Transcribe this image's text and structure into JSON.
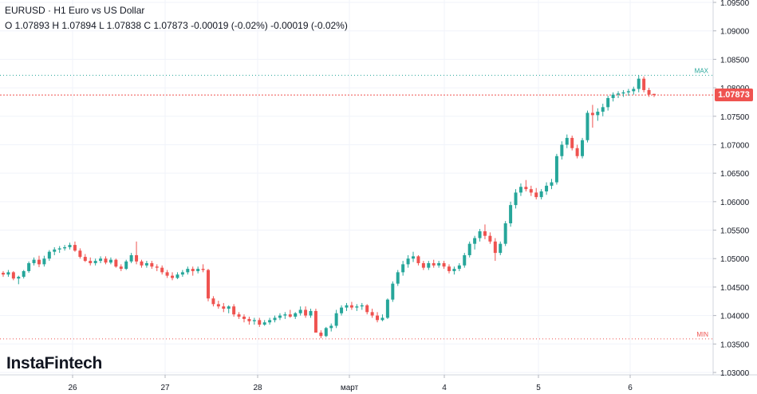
{
  "header": {
    "title": "EURUSD · H1 Euro vs US Dollar",
    "ohlc": "O 1.07893 H 1.07894 L 1.07838 C 1.07873 -0.00019 (-0.02%) -0.00019 (-0.02%)"
  },
  "logo": "InstaFintech",
  "colors": {
    "up": "#26a69a",
    "down": "#ef5350",
    "grid": "#f0f3fa",
    "axis_text": "#131722",
    "max_line": "#26a69a",
    "min_line": "#ef5350",
    "current_line": "#ef5350",
    "price_tag": "#ef5350"
  },
  "chart_data": {
    "type": "candlestick",
    "symbol": "EURUSD",
    "timeframe": "H1",
    "ylim": [
      1.03,
      1.095
    ],
    "y_ticks": [
      "1.09500",
      "1.09000",
      "1.08500",
      "1.08000",
      "1.07500",
      "1.07000",
      "1.06500",
      "1.06000",
      "1.05500",
      "1.05000",
      "1.04500",
      "1.04000",
      "1.03500",
      "1.03000"
    ],
    "x_labels": [
      "26",
      "27",
      "28",
      "март",
      "4",
      "5",
      "6"
    ],
    "current_price": "1.07873",
    "max": {
      "label": "MAX",
      "value": 1.0822
    },
    "min": {
      "label": "MIN",
      "value": 1.0359
    },
    "ohlc": [
      [
        1.0475,
        1.0478,
        1.0468,
        1.0472
      ],
      [
        1.0472,
        1.048,
        1.0468,
        1.0476
      ],
      [
        1.0476,
        1.0478,
        1.0462,
        1.0465
      ],
      [
        1.0465,
        1.047,
        1.0455,
        1.0468
      ],
      [
        1.0468,
        1.048,
        1.0465,
        1.0478
      ],
      [
        1.0478,
        1.0495,
        1.0475,
        1.0492
      ],
      [
        1.0492,
        1.0502,
        1.0488,
        1.0498
      ],
      [
        1.0498,
        1.0505,
        1.0485,
        1.049
      ],
      [
        1.049,
        1.0505,
        1.0486,
        1.05
      ],
      [
        1.05,
        1.0515,
        1.0496,
        1.0512
      ],
      [
        1.0512,
        1.052,
        1.0506,
        1.0516
      ],
      [
        1.0516,
        1.0522,
        1.051,
        1.0518
      ],
      [
        1.0518,
        1.0524,
        1.0514,
        1.052
      ],
      [
        1.052,
        1.0528,
        1.0516,
        1.0524
      ],
      [
        1.0524,
        1.053,
        1.0512,
        1.0514
      ],
      [
        1.0514,
        1.0518,
        1.05,
        1.0503
      ],
      [
        1.0503,
        1.0508,
        1.0494,
        1.0496
      ],
      [
        1.0496,
        1.0502,
        1.0488,
        1.0492
      ],
      [
        1.0492,
        1.05,
        1.0488,
        1.0496
      ],
      [
        1.0496,
        1.0504,
        1.0492,
        1.05
      ],
      [
        1.05,
        1.0504,
        1.049,
        1.0493
      ],
      [
        1.0493,
        1.0502,
        1.049,
        1.0498
      ],
      [
        1.0498,
        1.05,
        1.0484,
        1.0486
      ],
      [
        1.0486,
        1.049,
        1.0478,
        1.0482
      ],
      [
        1.0482,
        1.0498,
        1.048,
        1.0495
      ],
      [
        1.0495,
        1.051,
        1.0492,
        1.0506
      ],
      [
        1.0506,
        1.053,
        1.049,
        1.0495
      ],
      [
        1.0495,
        1.0498,
        1.0484,
        1.0488
      ],
      [
        1.0488,
        1.0496,
        1.0484,
        1.0492
      ],
      [
        1.0492,
        1.0496,
        1.0482,
        1.0486
      ],
      [
        1.0486,
        1.049,
        1.0478,
        1.0484
      ],
      [
        1.0484,
        1.0488,
        1.0472,
        1.0476
      ],
      [
        1.0476,
        1.048,
        1.0466,
        1.047
      ],
      [
        1.047,
        1.0476,
        1.0462,
        1.0466
      ],
      [
        1.0466,
        1.0476,
        1.0464,
        1.0472
      ],
      [
        1.0472,
        1.048,
        1.0468,
        1.0476
      ],
      [
        1.0476,
        1.0486,
        1.0472,
        1.0482
      ],
      [
        1.0482,
        1.0486,
        1.047,
        1.0478
      ],
      [
        1.0478,
        1.0486,
        1.0474,
        1.0482
      ],
      [
        1.0482,
        1.049,
        1.0476,
        1.048
      ],
      [
        1.048,
        1.0482,
        1.0425,
        1.043
      ],
      [
        1.043,
        1.0434,
        1.0416,
        1.042
      ],
      [
        1.042,
        1.0426,
        1.0412,
        1.0416
      ],
      [
        1.0416,
        1.0422,
        1.0406,
        1.0412
      ],
      [
        1.0412,
        1.0418,
        1.0404,
        1.0416
      ],
      [
        1.0416,
        1.042,
        1.0398,
        1.0402
      ],
      [
        1.0402,
        1.0406,
        1.0394,
        1.0398
      ],
      [
        1.0398,
        1.0402,
        1.0388,
        1.0394
      ],
      [
        1.0394,
        1.0398,
        1.0384,
        1.039
      ],
      [
        1.039,
        1.0396,
        1.0384,
        1.0392
      ],
      [
        1.0392,
        1.0396,
        1.038,
        1.0384
      ],
      [
        1.0384,
        1.0392,
        1.0382,
        1.0388
      ],
      [
        1.0388,
        1.0396,
        1.0384,
        1.0392
      ],
      [
        1.0392,
        1.04,
        1.0388,
        1.0396
      ],
      [
        1.0396,
        1.0404,
        1.0392,
        1.04
      ],
      [
        1.04,
        1.0406,
        1.0394,
        1.0402
      ],
      [
        1.0402,
        1.041,
        1.0396,
        1.0398
      ],
      [
        1.0398,
        1.0406,
        1.0394,
        1.0404
      ],
      [
        1.0404,
        1.0416,
        1.04,
        1.041
      ],
      [
        1.041,
        1.0416,
        1.0396,
        1.04
      ],
      [
        1.04,
        1.0412,
        1.0396,
        1.0408
      ],
      [
        1.0408,
        1.0412,
        1.0376,
        1.037
      ],
      [
        1.037,
        1.0374,
        1.036,
        1.0364
      ],
      [
        1.0364,
        1.038,
        1.0362,
        1.0378
      ],
      [
        1.0378,
        1.0386,
        1.0372,
        1.0382
      ],
      [
        1.0382,
        1.041,
        1.0378,
        1.0404
      ],
      [
        1.0404,
        1.0418,
        1.04,
        1.0414
      ],
      [
        1.0414,
        1.0422,
        1.0408,
        1.0418
      ],
      [
        1.0418,
        1.0424,
        1.041,
        1.0414
      ],
      [
        1.0414,
        1.042,
        1.0408,
        1.0416
      ],
      [
        1.0416,
        1.0422,
        1.041,
        1.0418
      ],
      [
        1.0418,
        1.042,
        1.0402,
        1.0406
      ],
      [
        1.0406,
        1.0412,
        1.0396,
        1.04
      ],
      [
        1.04,
        1.0406,
        1.0388,
        1.0392
      ],
      [
        1.0392,
        1.0402,
        1.039,
        1.0396
      ],
      [
        1.0396,
        1.043,
        1.0394,
        1.0428
      ],
      [
        1.0428,
        1.046,
        1.0424,
        1.0456
      ],
      [
        1.0456,
        1.048,
        1.0452,
        1.0476
      ],
      [
        1.0476,
        1.0496,
        1.047,
        1.049
      ],
      [
        1.049,
        1.0506,
        1.0484,
        1.05
      ],
      [
        1.05,
        1.0512,
        1.0494,
        1.0504
      ],
      [
        1.0504,
        1.0506,
        1.0488,
        1.0492
      ],
      [
        1.0492,
        1.0496,
        1.048,
        1.0484
      ],
      [
        1.0484,
        1.0496,
        1.048,
        1.0492
      ],
      [
        1.0492,
        1.0498,
        1.0484,
        1.0488
      ],
      [
        1.0488,
        1.0496,
        1.0484,
        1.0492
      ],
      [
        1.0492,
        1.0496,
        1.0482,
        1.0486
      ],
      [
        1.0486,
        1.049,
        1.0474,
        1.0478
      ],
      [
        1.0478,
        1.0486,
        1.0472,
        1.0482
      ],
      [
        1.0482,
        1.0492,
        1.0478,
        1.0488
      ],
      [
        1.0488,
        1.051,
        1.0484,
        1.0506
      ],
      [
        1.0506,
        1.053,
        1.0502,
        1.0526
      ],
      [
        1.0526,
        1.054,
        1.0516,
        1.0536
      ],
      [
        1.0536,
        1.0552,
        1.053,
        1.0548
      ],
      [
        1.0548,
        1.056,
        1.0534,
        1.054
      ],
      [
        1.054,
        1.0546,
        1.0526,
        1.053
      ],
      [
        1.053,
        1.0536,
        1.0496,
        1.051
      ],
      [
        1.051,
        1.053,
        1.0506,
        1.0526
      ],
      [
        1.0526,
        1.0566,
        1.0522,
        1.0562
      ],
      [
        1.0562,
        1.06,
        1.0556,
        1.0594
      ],
      [
        1.0594,
        1.0622,
        1.0588,
        1.0616
      ],
      [
        1.0616,
        1.0632,
        1.061,
        1.0626
      ],
      [
        1.0626,
        1.0638,
        1.0618,
        1.0622
      ],
      [
        1.0622,
        1.0628,
        1.061,
        1.0616
      ],
      [
        1.0616,
        1.0624,
        1.0604,
        1.0608
      ],
      [
        1.0608,
        1.0622,
        1.0604,
        1.0618
      ],
      [
        1.0618,
        1.0634,
        1.0612,
        1.0628
      ],
      [
        1.0628,
        1.064,
        1.0622,
        1.0634
      ],
      [
        1.0634,
        1.0684,
        1.063,
        1.068
      ],
      [
        1.068,
        1.0706,
        1.0674,
        1.07
      ],
      [
        1.07,
        1.0718,
        1.0694,
        1.0712
      ],
      [
        1.0712,
        1.0716,
        1.069,
        1.0694
      ],
      [
        1.0694,
        1.07,
        1.0676,
        1.068
      ],
      [
        1.068,
        1.0712,
        1.0676,
        1.0708
      ],
      [
        1.0708,
        1.076,
        1.0704,
        1.0756
      ],
      [
        1.0756,
        1.077,
        1.073,
        1.0752
      ],
      [
        1.0752,
        1.0764,
        1.0742,
        1.0758
      ],
      [
        1.0758,
        1.0772,
        1.075,
        1.0766
      ],
      [
        1.0766,
        1.0786,
        1.076,
        1.0782
      ],
      [
        1.0782,
        1.0792,
        1.0776,
        1.0788
      ],
      [
        1.0788,
        1.0794,
        1.0782,
        1.079
      ],
      [
        1.079,
        1.0796,
        1.0784,
        1.0792
      ],
      [
        1.0792,
        1.0798,
        1.0786,
        1.0794
      ],
      [
        1.0794,
        1.0802,
        1.0788,
        1.0798
      ],
      [
        1.0798,
        1.0822,
        1.0792,
        1.0816
      ],
      [
        1.0816,
        1.082,
        1.0792,
        1.0796
      ],
      [
        1.0796,
        1.08,
        1.0784,
        1.0788
      ],
      [
        1.07893,
        1.07894,
        1.07838,
        1.07873
      ]
    ]
  }
}
